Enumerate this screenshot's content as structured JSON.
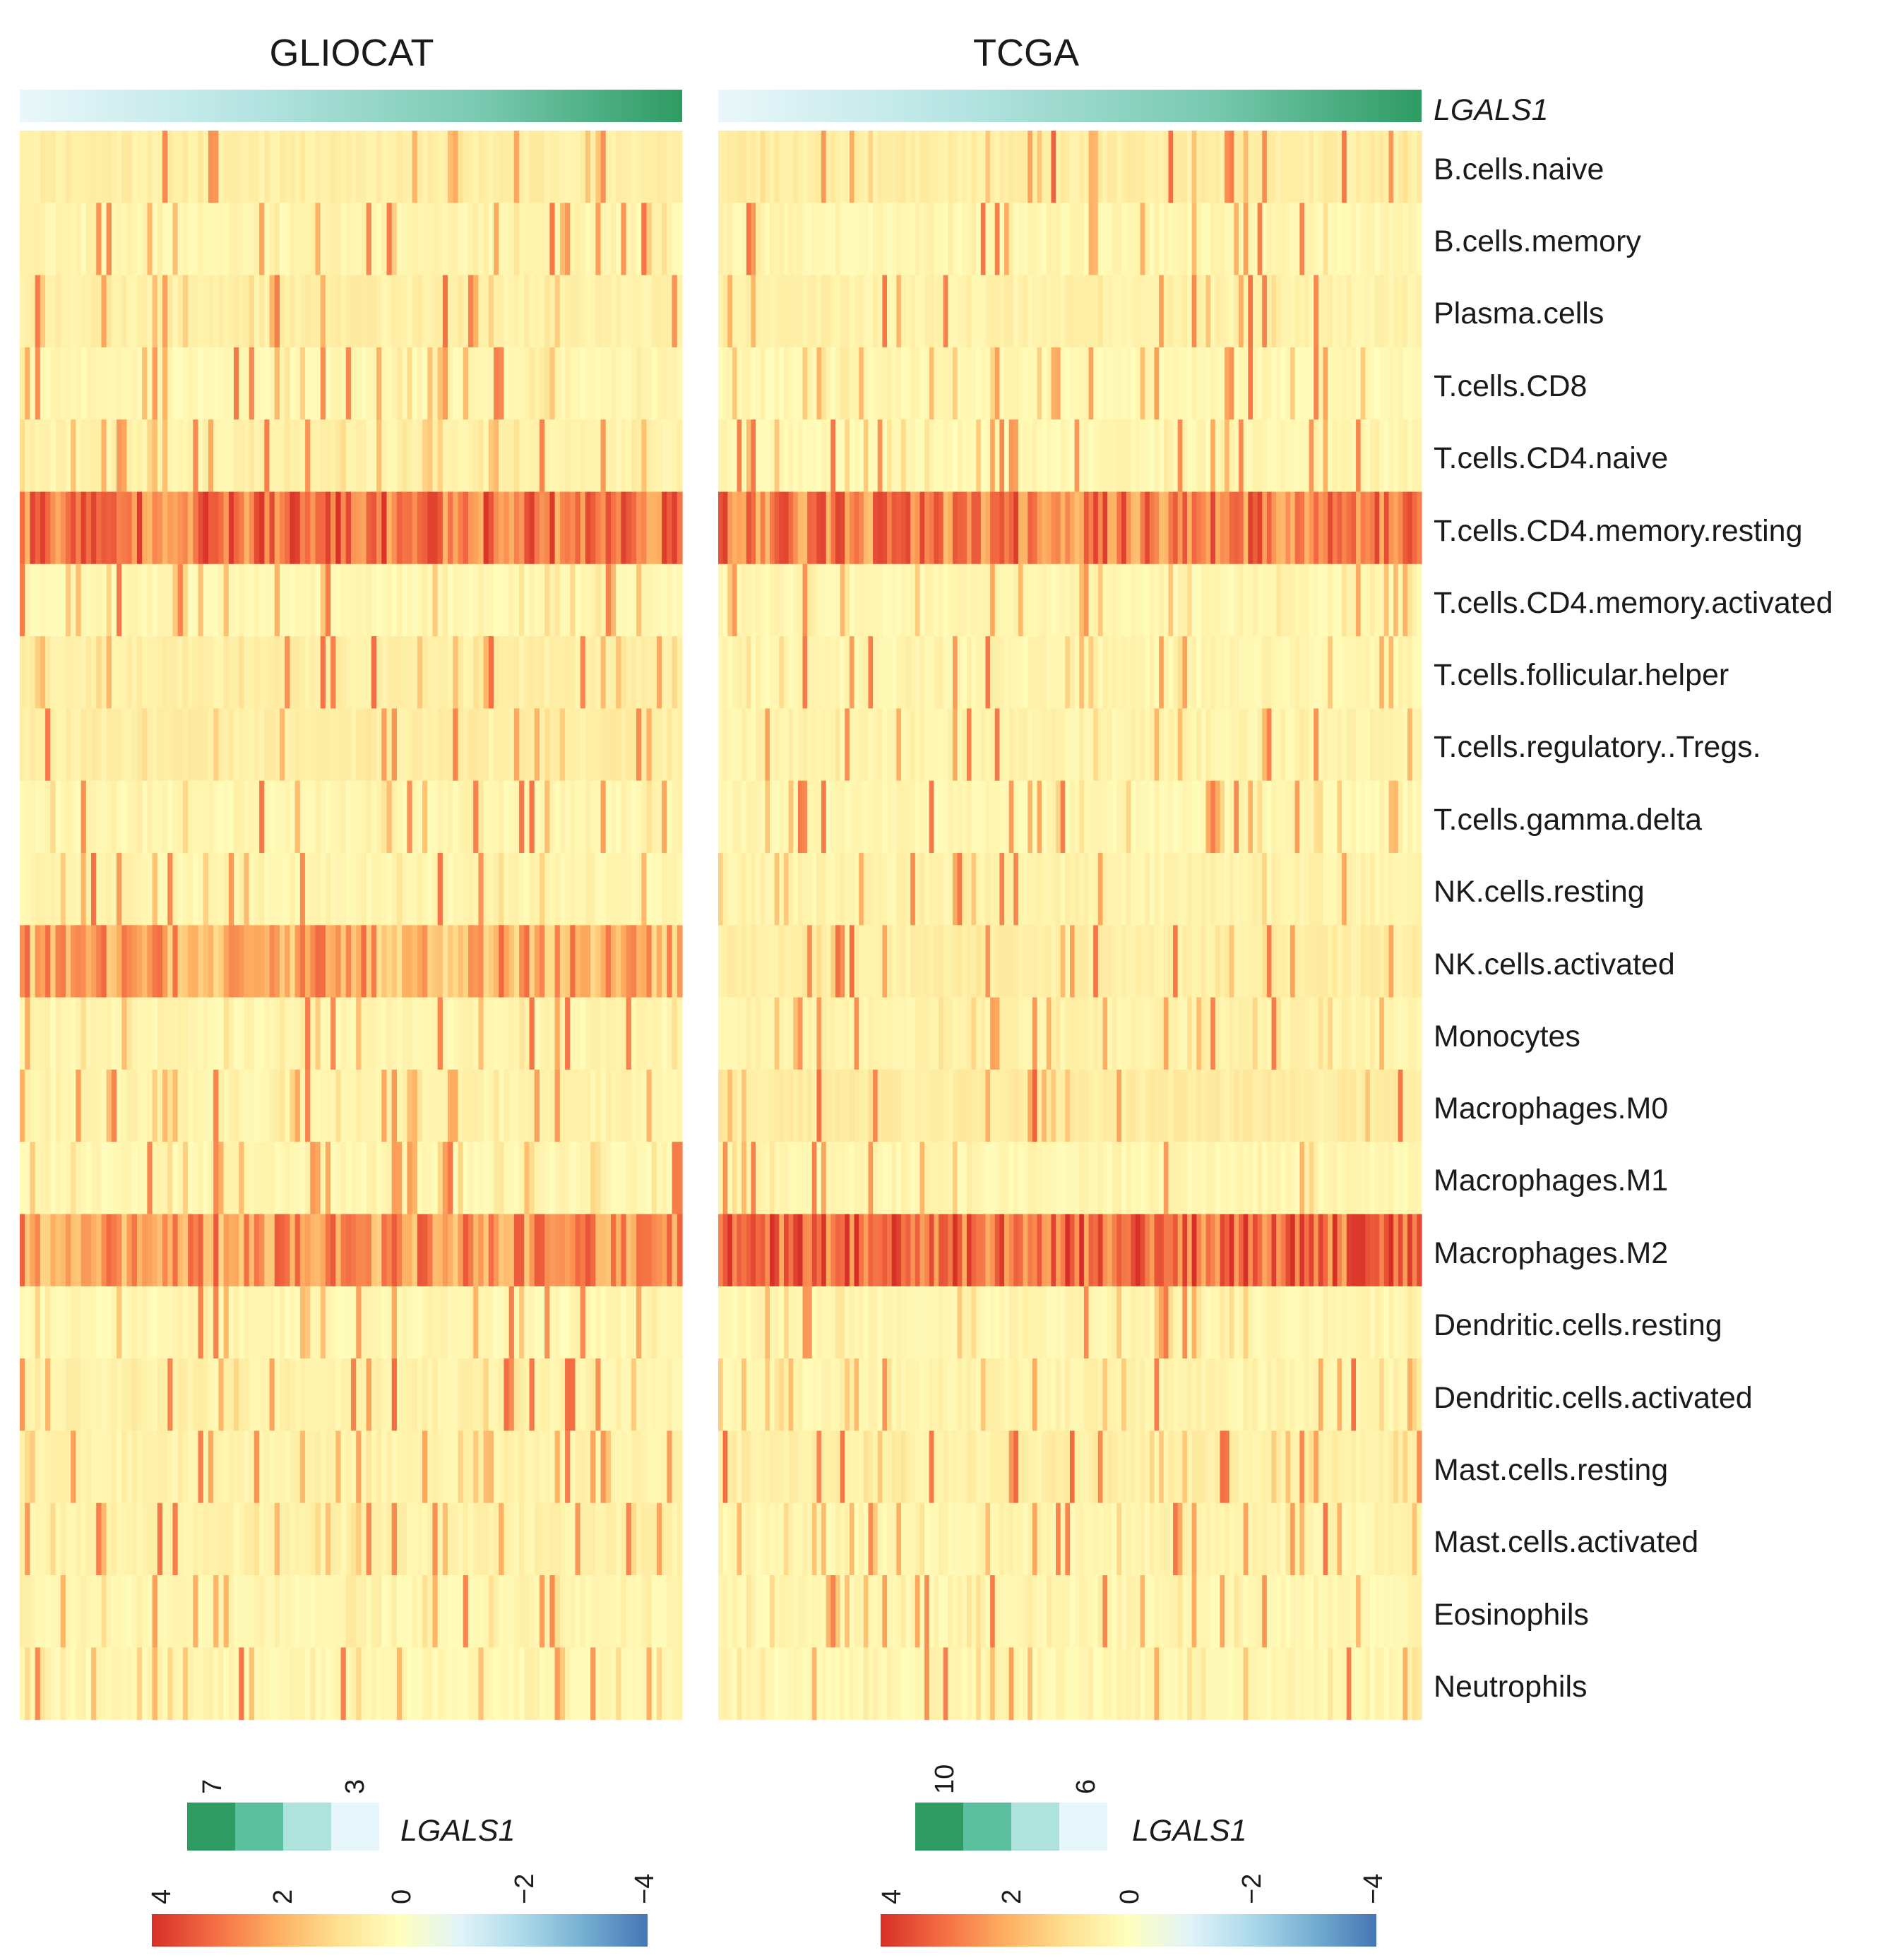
{
  "chart_data": {
    "type": "heatmap",
    "title": "",
    "panels": [
      {
        "name": "GLIOCAT",
        "n_samples": 130,
        "seed": 11
      },
      {
        "name": "TCGA",
        "n_samples": 150,
        "seed": 23
      }
    ],
    "annotation": {
      "label": "LGALS1",
      "colors": [
        "#e6f6fa",
        "#bfe8e6",
        "#8fd6cb",
        "#5cbf9e",
        "#2e9b63"
      ]
    },
    "rows": [
      "B.cells.naive",
      "B.cells.memory",
      "Plasma.cells",
      "T.cells.CD8",
      "T.cells.CD4.naive",
      "T.cells.CD4.memory.resting",
      "T.cells.CD4.memory.activated",
      "T.cells.follicular.helper",
      "T.cells.regulatory..Tregs.",
      "T.cells.gamma.delta",
      "NK.cells.resting",
      "NK.cells.activated",
      "Monocytes",
      "Macrophages.M0",
      "Macrophages.M1",
      "Macrophages.M2",
      "Dendritic.cells.resting",
      "Dendritic.cells.activated",
      "Mast.cells.resting",
      "Mast.cells.activated",
      "Eosinophils",
      "Neutrophils"
    ],
    "row_levels": {
      "GLIOCAT": [
        0.9,
        0.35,
        0.8,
        0.1,
        0.55,
        2.8,
        0.12,
        0.9,
        0.95,
        0.25,
        0.35,
        1.9,
        0.3,
        0.5,
        0.2,
        2.2,
        0.15,
        0.6,
        0.55,
        0.6,
        0.3,
        0.2
      ],
      "TCGA": [
        1.0,
        0.25,
        0.6,
        0.1,
        0.15,
        2.6,
        0.2,
        0.35,
        0.45,
        0.15,
        0.5,
        0.9,
        0.55,
        1.1,
        0.25,
        3.0,
        0.3,
        0.45,
        0.8,
        0.35,
        0.2,
        0.2
      ]
    },
    "color_scale": {
      "domain": [
        4,
        -4
      ],
      "colors": [
        "#d73027",
        "#f46d43",
        "#fdae61",
        "#fee090",
        "#ffffbf",
        "#e0f3f8",
        "#abd9e9",
        "#74add1",
        "#4575b4"
      ]
    },
    "legends": [
      {
        "panel": "GLIOCAT",
        "annotation_label": "LGALS1",
        "annotation_ticks": [
          "7",
          "3"
        ],
        "scale_ticks": [
          "4",
          "2",
          "0",
          "−2",
          "−4"
        ]
      },
      {
        "panel": "TCGA",
        "annotation_label": "LGALS1",
        "annotation_ticks": [
          "10",
          "6"
        ],
        "scale_ticks": [
          "4",
          "2",
          "0",
          "−2",
          "−4"
        ]
      }
    ]
  }
}
